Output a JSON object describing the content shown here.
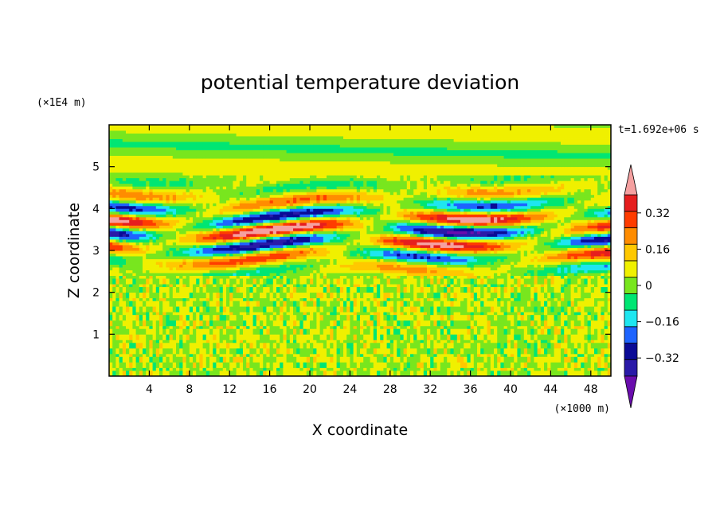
{
  "chart_data": {
    "type": "heatmap",
    "title": "potential temperature deviation",
    "xlabel": "X coordinate",
    "ylabel": "Z coordinate",
    "x_unit": "(×1000 m)",
    "y_unit": "(×1E4 m)",
    "time_stamp": "t=1.692e+06 s",
    "xlim": [
      0,
      50
    ],
    "ylim": [
      0,
      6
    ],
    "x_ticks": [
      4,
      8,
      12,
      16,
      20,
      24,
      28,
      32,
      36,
      40,
      44,
      48
    ],
    "y_ticks": [
      1,
      2,
      3,
      4,
      5
    ],
    "colorbar": {
      "levels": [
        -0.48,
        -0.4,
        -0.32,
        -0.24,
        -0.16,
        -0.08,
        0,
        0.08,
        0.16,
        0.24,
        0.32,
        0.4,
        0.48
      ],
      "colors": [
        "#6a0dad",
        "#2a1aa8",
        "#0a0a96",
        "#1e64ff",
        "#1ee6f0",
        "#00e673",
        "#78e61e",
        "#f0f000",
        "#ffc800",
        "#ff8c00",
        "#ff3c00",
        "#e61e1e",
        "#f5a0a0"
      ],
      "tick_values": [
        0.32,
        0.16,
        0,
        -0.16,
        -0.32
      ],
      "tick_labels": [
        "0.32",
        "0.16",
        "0",
        "−0.16",
        "−0.32"
      ],
      "extend": "both"
    }
  }
}
